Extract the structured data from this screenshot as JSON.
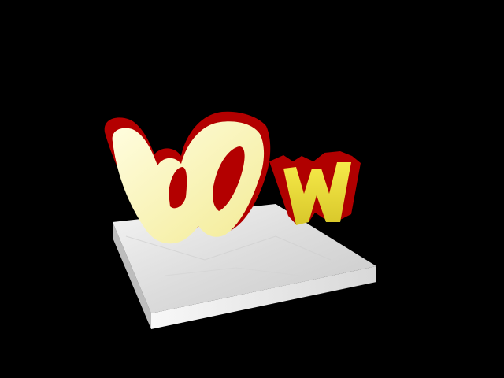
{
  "scene": {
    "background": "#000000",
    "letters": [
      {
        "char": "W",
        "role": "large-glyph",
        "face_color": "#FDF8B4",
        "extrude_color": "#B00000"
      },
      {
        "char": "w",
        "role": "small-glyph",
        "face_color": "#F0E040",
        "extrude_color": "#B00000"
      }
    ],
    "platform": {
      "color": "#E4E4E4",
      "material": "glassy-white"
    }
  }
}
